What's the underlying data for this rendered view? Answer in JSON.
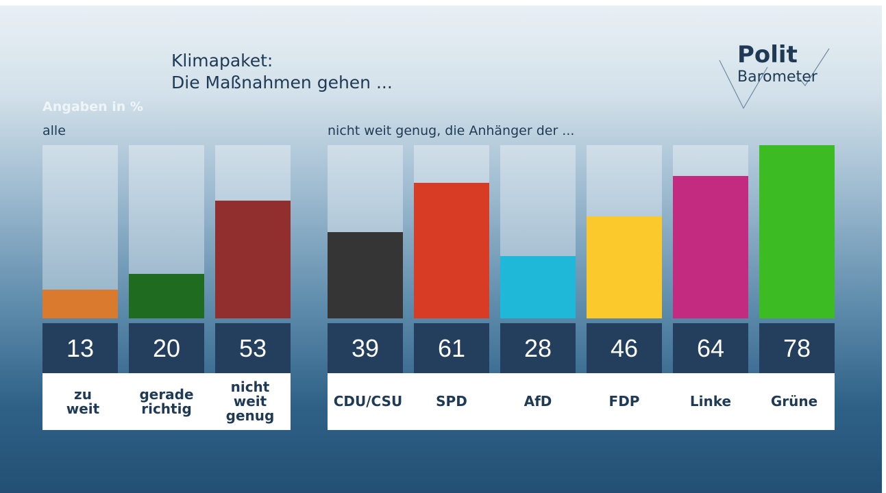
{
  "header": {
    "title_lines": [
      "Klimapaket:",
      "Die Maßnahmen gehen ..."
    ],
    "unit_note": "Angaben in %",
    "logo": [
      "Polit",
      "Barometer"
    ]
  },
  "chart_data": [
    {
      "type": "bar",
      "subtitle": "alle",
      "categories": [
        "zu weit",
        "gerade richtig",
        "nicht weit genug"
      ],
      "values": [
        13,
        20,
        53
      ],
      "colors": [
        "#d97a2e",
        "#1f6b1f",
        "#912e2e"
      ],
      "ylim": [
        0,
        78
      ]
    },
    {
      "type": "bar",
      "subtitle": "nicht weit genug, die Anhänger der ...",
      "categories": [
        "CDU/CSU",
        "SPD",
        "AfD",
        "FDP",
        "Linke",
        "Grüne"
      ],
      "values": [
        39,
        61,
        28,
        46,
        64,
        78
      ],
      "colors": [
        "#353535",
        "#d83c25",
        "#1fb8d8",
        "#fcc92c",
        "#c22b80",
        "#3dbb23"
      ],
      "ylim": [
        0,
        78
      ]
    }
  ]
}
